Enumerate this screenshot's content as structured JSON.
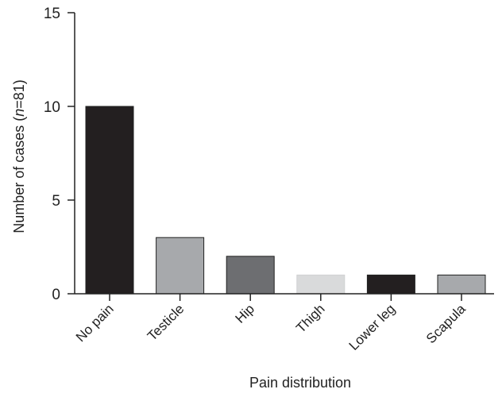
{
  "chart_data": {
    "type": "bar",
    "categories": [
      "No pain",
      "Testicle",
      "Hip",
      "Thigh",
      "Lower leg",
      "Scapula"
    ],
    "values": [
      10,
      3,
      2,
      1,
      1,
      1
    ],
    "colors": [
      "#231f20",
      "#a7a9ac",
      "#6d6e71",
      "#d9dadb",
      "#231f20",
      "#a7a9ac"
    ],
    "xlabel": "Pain distribution",
    "ylabel": {
      "prefix": "Number of cases (",
      "italic": "n",
      "suffix": "=81)"
    },
    "ylim": [
      0,
      15
    ],
    "yticks": [
      "0",
      "5",
      "10",
      "15"
    ],
    "grid": false,
    "legend": "none"
  }
}
